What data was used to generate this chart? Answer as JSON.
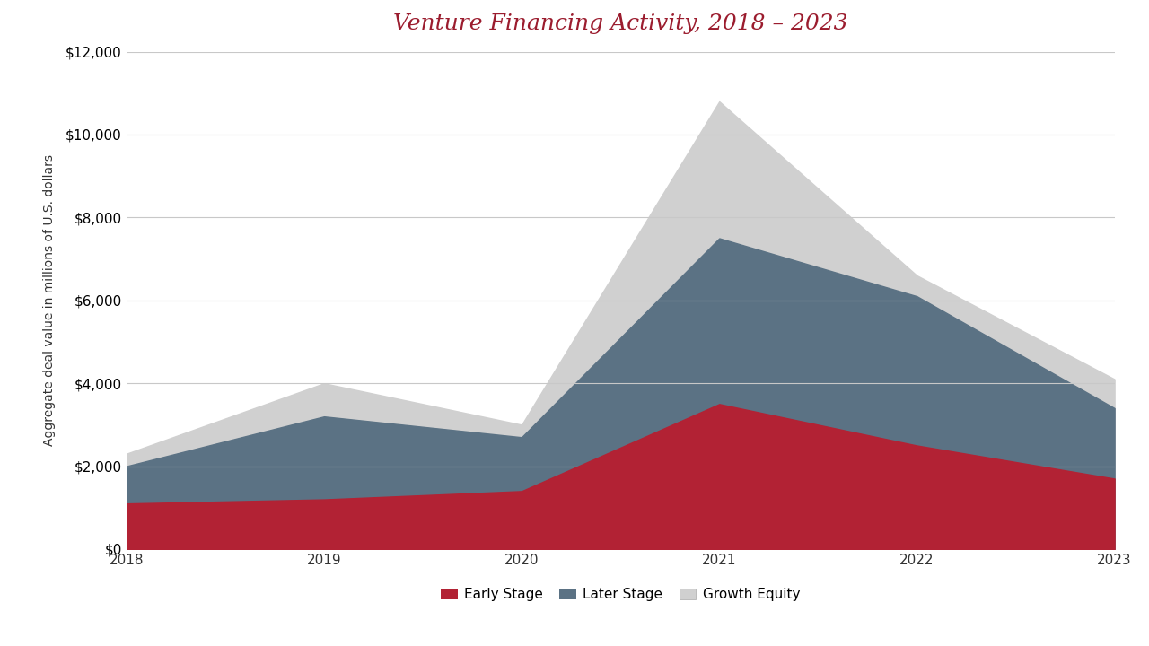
{
  "title": "Venture Financing Activity, 2018 – 2023",
  "title_color": "#9B1C2E",
  "ylabel": "Aggregate deal value in millions of U.S. dollars",
  "years": [
    2018,
    2019,
    2020,
    2021,
    2022,
    2023
  ],
  "early_stage": [
    1100,
    1200,
    1400,
    3500,
    2500,
    1700
  ],
  "later_stage": [
    2000,
    3200,
    2700,
    7500,
    6100,
    3400
  ],
  "growth_equity": [
    2300,
    4000,
    3000,
    10800,
    6600,
    4100
  ],
  "early_stage_color": "#B22234",
  "later_stage_color": "#5B7284",
  "growth_equity_color": "#D0D0D0",
  "background_color": "#FFFFFF",
  "ylim": [
    0,
    12000
  ],
  "yticks": [
    0,
    2000,
    4000,
    6000,
    8000,
    10000,
    12000
  ],
  "legend_labels": [
    "Early Stage",
    "Later Stage",
    "Growth Equity"
  ],
  "grid_color": "#C8C8C8",
  "title_fontsize": 18,
  "tick_fontsize": 11,
  "ylabel_fontsize": 10
}
